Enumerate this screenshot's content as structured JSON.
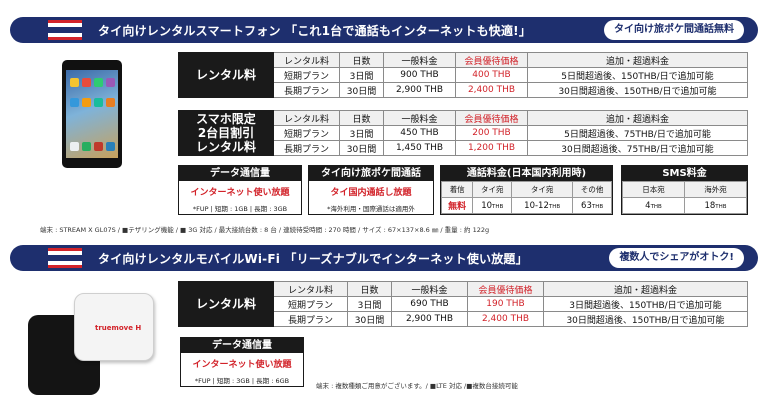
{
  "section1": {
    "title": "タイ向けレンタルスマートフォン 「これ1台で通話もインターネットも快適!」",
    "badge": "タイ向け旅ポケ間通話無料",
    "table1": {
      "label": "レンタル料",
      "headers": [
        "レンタル料",
        "日数",
        "一般料金",
        "会員優待価格",
        "追加・超過料金"
      ],
      "rows": [
        [
          "短期プラン",
          "3日間",
          "900 THB",
          "400 THB",
          "5日間超過後、150THB/日で追加可能"
        ],
        [
          "長期プラン",
          "30日間",
          "2,900 THB",
          "2,400 THB",
          "30日間超過後、150THB/日で追加可能"
        ]
      ]
    },
    "table2": {
      "label_lines": [
        "スマホ限定",
        "2台目割引",
        "レンタル料"
      ],
      "headers": [
        "レンタル料",
        "日数",
        "一般料金",
        "会員優待価格",
        "追加・超過料金"
      ],
      "rows": [
        [
          "短期プラン",
          "3日間",
          "450 THB",
          "200 THB",
          "5日間超過後、75THB/日で追加可能"
        ],
        [
          "長期プラン",
          "30日間",
          "1,450 THB",
          "1,200 THB",
          "30日間超過後、75THB/日で追加可能"
        ]
      ]
    },
    "data_box": {
      "title": "データ通信量",
      "highlight": "インターネット使い放題",
      "note": "*FUP | 短期 : 1GB | 長期 : 3GB"
    },
    "call_box": {
      "title": "タイ向け旅ポケ間通話",
      "highlight": "タイ国内通話し放題",
      "note": "*海外利用・国際通話は適用外"
    },
    "call_rates": {
      "title": "通話料金(日本国内利用時)",
      "headers": [
        "着信",
        "タイ宛",
        "タイ宛",
        "その他"
      ],
      "values": [
        "無料",
        "10",
        "10-12",
        "63"
      ],
      "unit": "THB"
    },
    "sms": {
      "title": "SMS料金",
      "headers": [
        "日本宛",
        "海外宛"
      ],
      "values": [
        "4",
        "18"
      ],
      "unit": "THB"
    },
    "footnote": "端末 : STREAM X GL07S / ■テザリング機能 / ■ 3G 対応 / 最大接続台数 : 8 台 / 連続待受時間 : 270 時間 / サイズ : 67×137×8.6 ㎜ / 重量 : 約 122g"
  },
  "section2": {
    "title": "タイ向けレンタルモバイルWi-Fi 「リーズナブルでインターネット使い放題」",
    "badge": "複数人でシェアがオトク!",
    "table": {
      "label": "レンタル料",
      "headers": [
        "レンタル料",
        "日数",
        "一般料金",
        "会員優待価格",
        "追加・超過料金"
      ],
      "rows": [
        [
          "短期プラン",
          "3日間",
          "690 THB",
          "190 THB",
          "3日間超過後、150THB/日で追加可能"
        ],
        [
          "長期プラン",
          "30日間",
          "2,900 THB",
          "2,400 THB",
          "30日間超過後、150THB/日で追加可能"
        ]
      ]
    },
    "data_box": {
      "title": "データ通信量",
      "highlight": "インターネット使い放題",
      "note": "*FUP | 短期 : 3GB | 長期 : 6GB"
    },
    "footnote": "端末 : 複数種類ご用意がございます。/ ■LTE 対応 /■複数台接続可能",
    "device_brand": "truemove H"
  }
}
